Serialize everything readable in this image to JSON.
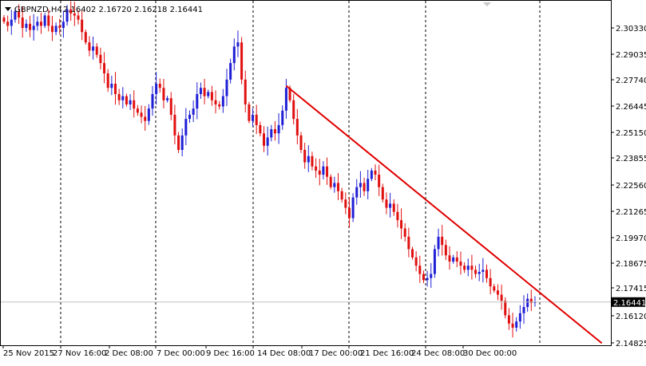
{
  "header": {
    "symbol_label": "GBPNZD,H4",
    "ohlc_values": "2.16402 2.16720 2.16218 2.16441",
    "menu_icon": "triangle-down-icon",
    "scroll_icon": "triangle-down-icon"
  },
  "price_axis": {
    "ticks": [
      "2.30330",
      "2.29035",
      "2.27740",
      "2.26445",
      "2.25150",
      "2.23855",
      "2.22560",
      "2.21265",
      "2.19970",
      "2.18675",
      "2.17415",
      "2.16120",
      "2.14825"
    ],
    "current_price": "2.16441",
    "current_price_value": 2.16441
  },
  "time_axis": {
    "labels": [
      "25 Nov 2015",
      "27 Nov 16:00",
      "2 Dec 08:00",
      "7 Dec 00:00",
      "9 Dec 16:00",
      "14 Dec 08:00",
      "17 Dec 00:00",
      "21 Dec 16:00",
      "24 Dec 08:00",
      "30 Dec 00:00"
    ]
  },
  "colors": {
    "background": "#ffffff",
    "border": "#000000",
    "grid": "#000000",
    "bull_candle": "#1f1fd6",
    "bear_candle": "#e01010",
    "trendline": "#e00000",
    "price_line": "#c0c0c0",
    "label_bg": "#000000",
    "label_text": "#ffffff"
  },
  "chart_data": {
    "type": "candlestick",
    "symbol": "GBPNZD",
    "timeframe": "H4",
    "ylim": [
      2.1435,
      2.3105
    ],
    "last": {
      "open": 2.16402,
      "high": 2.1672,
      "low": 2.16218,
      "close": 2.16441
    },
    "trendline": {
      "start": {
        "bar": 76,
        "price": 2.269
      },
      "end": {
        "bar": 161,
        "price": 2.1445
      }
    },
    "closes": [
      2.3,
      2.298,
      2.301,
      2.305,
      2.302,
      2.297,
      2.299,
      2.296,
      2.298,
      2.3,
      2.298,
      2.303,
      2.298,
      2.295,
      2.298,
      2.297,
      2.3,
      2.306,
      2.304,
      2.303,
      2.301,
      2.295,
      2.29,
      2.286,
      2.288,
      2.284,
      2.28,
      2.275,
      2.268,
      2.27,
      2.265,
      2.262,
      2.264,
      2.26,
      2.262,
      2.258,
      2.256,
      2.254,
      2.252,
      2.258,
      2.265,
      2.27,
      2.268,
      2.262,
      2.263,
      2.255,
      2.245,
      2.238,
      2.245,
      2.253,
      2.255,
      2.258,
      2.265,
      2.268,
      2.264,
      2.266,
      2.262,
      2.26,
      2.259,
      2.264,
      2.272,
      2.28,
      2.288,
      2.29,
      2.272,
      2.26,
      2.252,
      2.255,
      2.25,
      2.246,
      2.24,
      2.244,
      2.248,
      2.246,
      2.25,
      2.257,
      2.268,
      2.262,
      2.253,
      2.245,
      2.238,
      2.232,
      2.235,
      2.23,
      2.228,
      2.226,
      2.23,
      2.225,
      2.22,
      2.222,
      2.218,
      2.214,
      2.21,
      2.205,
      2.215,
      2.22,
      2.222,
      2.218,
      2.224,
      2.228,
      2.226,
      2.22,
      2.214,
      2.21,
      2.212,
      2.208,
      2.204,
      2.2,
      2.196,
      2.19,
      2.186,
      2.182,
      2.178,
      2.175,
      2.176,
      2.178,
      2.19,
      2.196,
      2.192,
      2.187,
      2.184,
      2.186,
      2.184,
      2.182,
      2.18,
      2.182,
      2.18,
      2.178,
      2.179,
      2.18,
      2.176,
      2.172,
      2.17,
      2.168,
      2.165,
      2.158,
      2.154,
      2.152,
      2.155,
      2.159,
      2.162,
      2.166,
      2.164,
      2.16441
    ]
  }
}
